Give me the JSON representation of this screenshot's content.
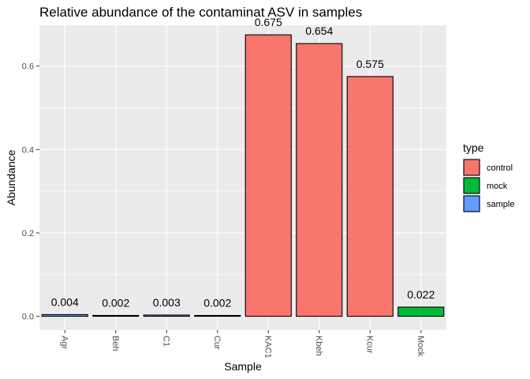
{
  "chart_data": {
    "type": "bar",
    "title": "Relative abundance of the contaminat ASV in samples",
    "xlabel": "Sample",
    "ylabel": "Abundance",
    "categories": [
      "Agr",
      "Beh",
      "C1",
      "Cur",
      "KAC1",
      "Kbeh",
      "Kcur",
      "Mock"
    ],
    "values": [
      0.004,
      0.002,
      0.003,
      0.002,
      0.675,
      0.654,
      0.575,
      0.022
    ],
    "value_labels": [
      "0.004",
      "0.002",
      "0.003",
      "0.002",
      "0.675",
      "0.654",
      "0.575",
      "0.022"
    ],
    "types": [
      "sample",
      "sample",
      "sample",
      "sample",
      "control",
      "control",
      "control",
      "mock"
    ],
    "ylim": [
      -0.033,
      0.698
    ],
    "yticks": [
      0.0,
      0.2,
      0.4,
      0.6
    ],
    "ytick_labels": [
      "0.0",
      "0.2",
      "0.4",
      "0.6"
    ],
    "grid": true,
    "legend": {
      "title": "type",
      "placement": "right",
      "entries": [
        {
          "name": "control",
          "color": "#F8766D"
        },
        {
          "name": "mock",
          "color": "#00BA38"
        },
        {
          "name": "sample",
          "color": "#619CFF"
        }
      ]
    },
    "colors": {
      "panel_background": "#EBEBEB",
      "grid": "#FFFFFF",
      "bar_outline": "#000000"
    }
  }
}
